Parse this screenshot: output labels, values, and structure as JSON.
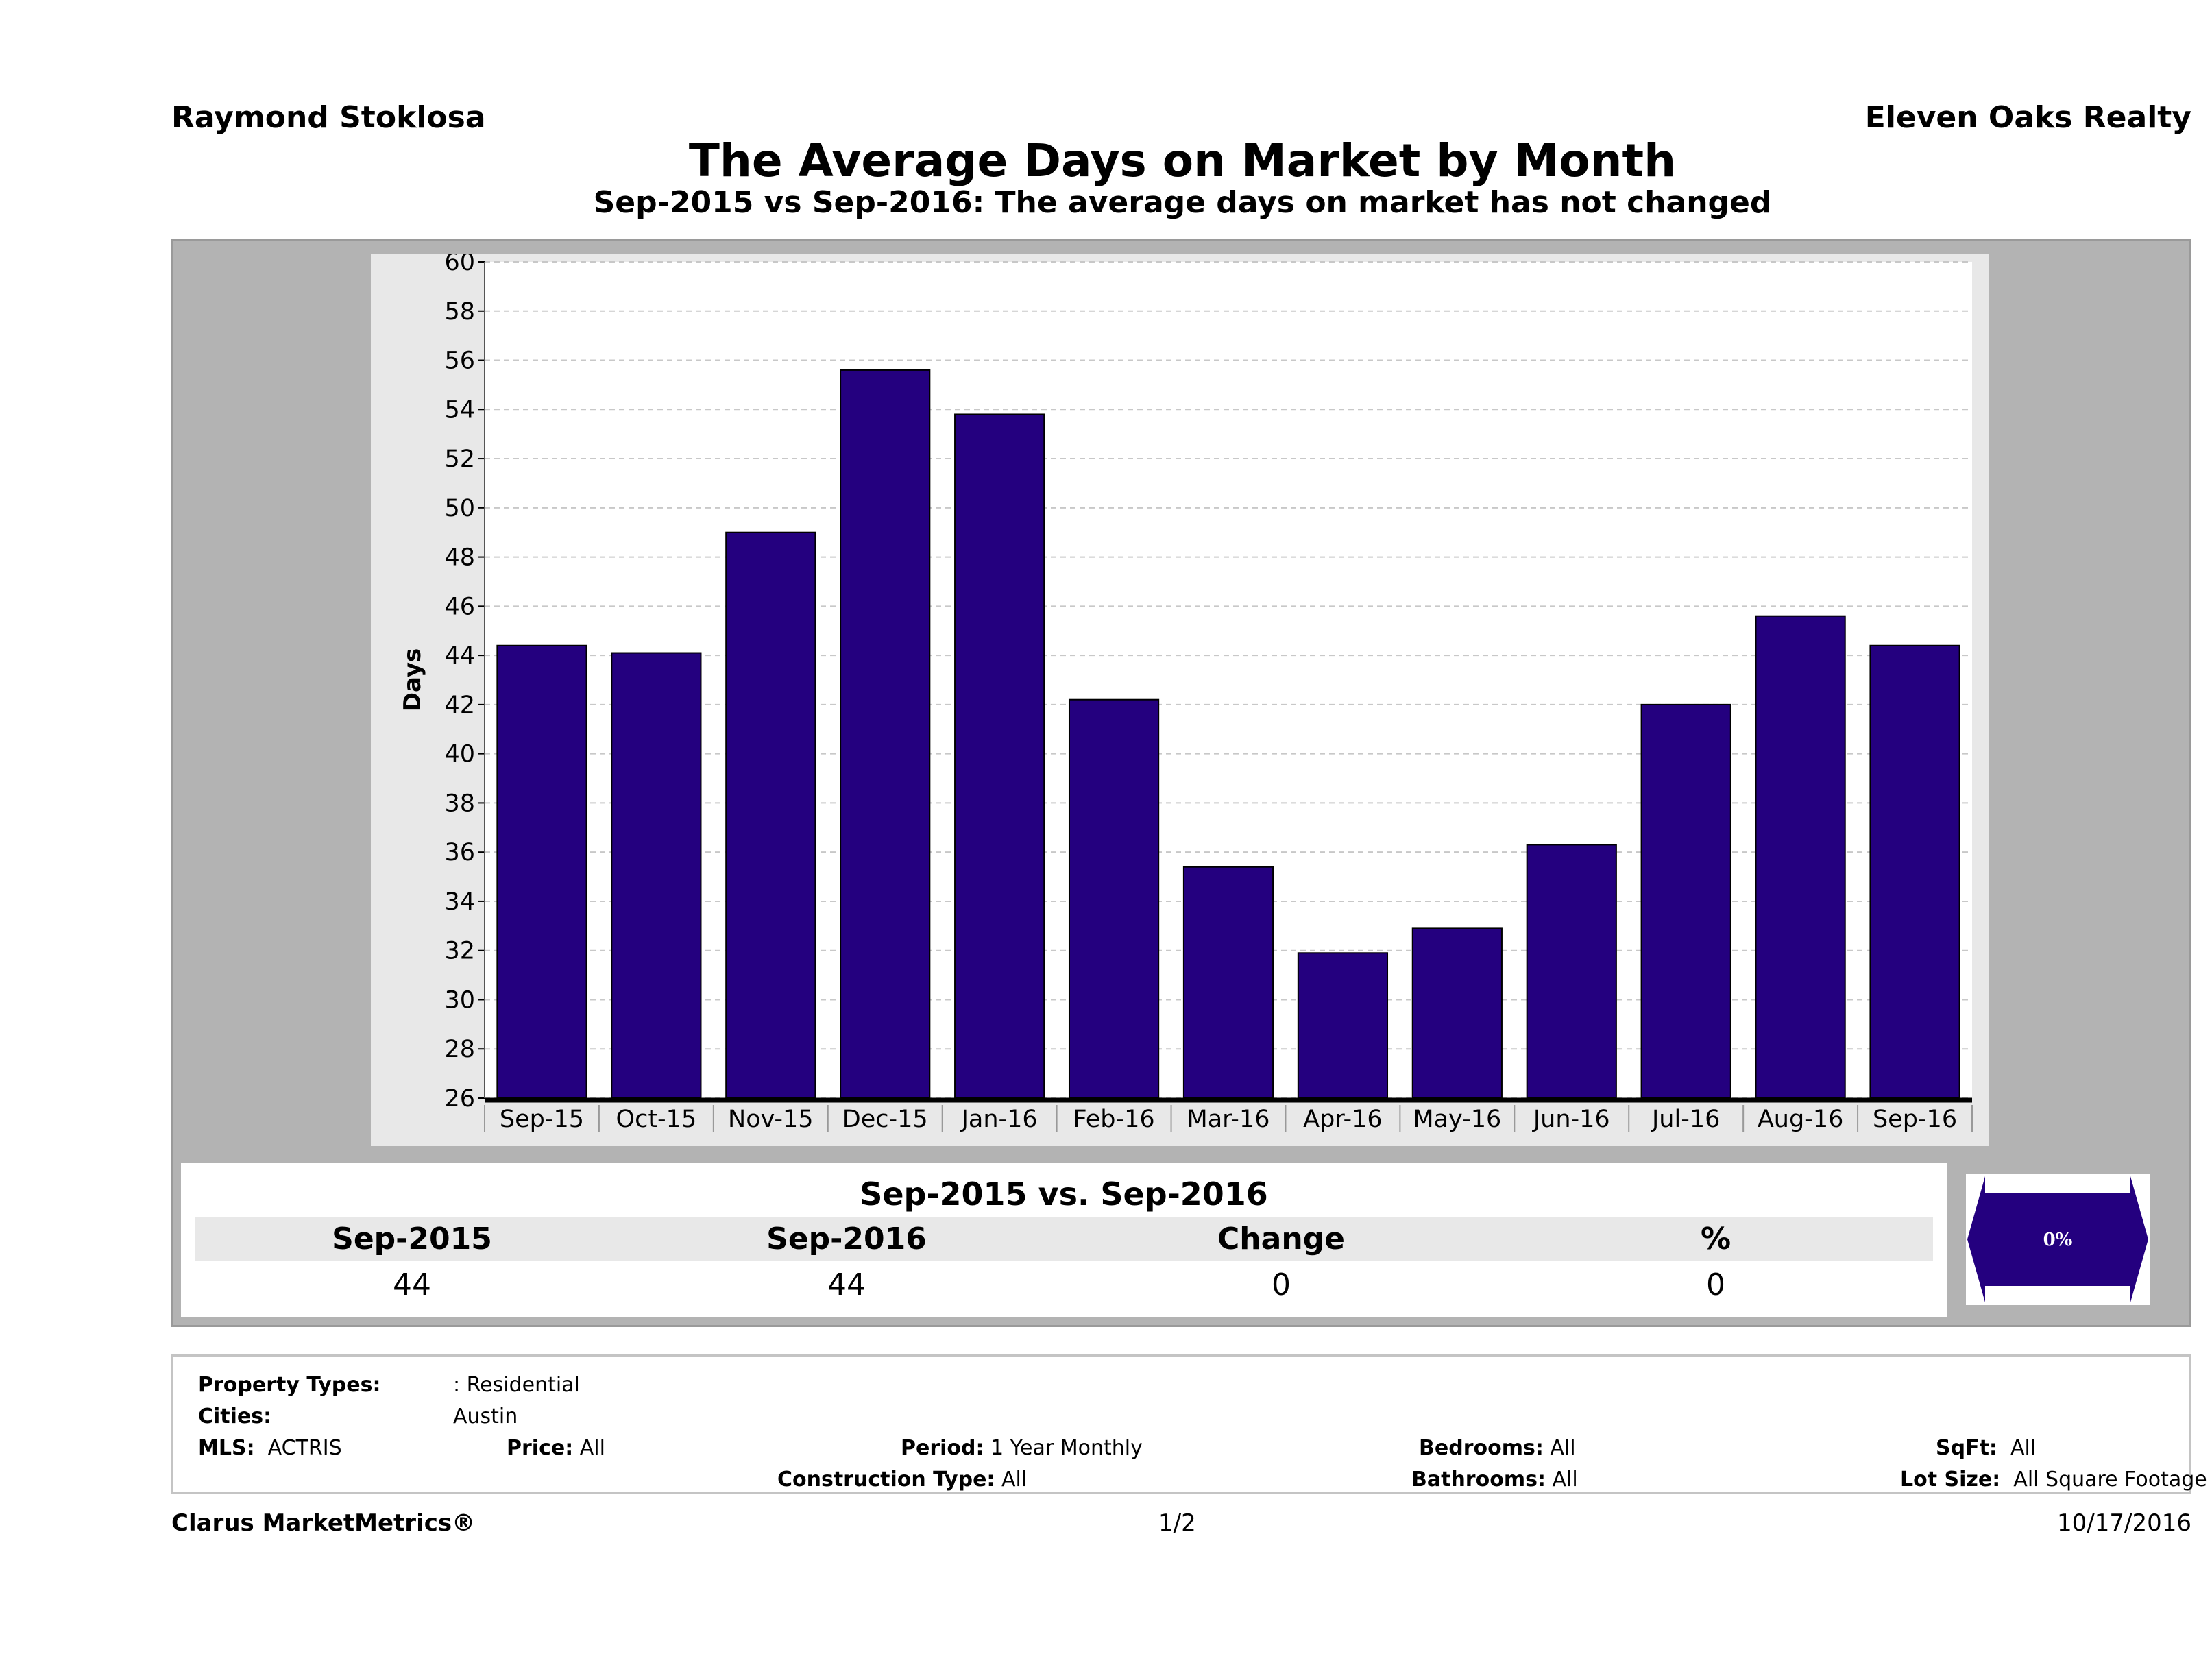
{
  "header": {
    "agent": "Raymond Stoklosa",
    "brokerage": "Eleven Oaks Realty"
  },
  "chart_data": {
    "type": "bar",
    "title": "The Average Days on Market by Month",
    "subtitle": "Sep-2015 vs Sep-2016: The average days on market has not changed",
    "xlabel": "",
    "ylabel": "Days",
    "ylim": [
      26,
      60
    ],
    "yticks": [
      26,
      28,
      30,
      32,
      34,
      36,
      38,
      40,
      42,
      44,
      46,
      48,
      50,
      52,
      54,
      56,
      58,
      60
    ],
    "grid": true,
    "categories": [
      "Sep-15",
      "Oct-15",
      "Nov-15",
      "Dec-15",
      "Jan-16",
      "Feb-16",
      "Mar-16",
      "Apr-16",
      "May-16",
      "Jun-16",
      "Jul-16",
      "Aug-16",
      "Sep-16"
    ],
    "values": [
      44.4,
      44.1,
      49.0,
      55.6,
      53.8,
      42.2,
      35.4,
      31.9,
      32.9,
      36.3,
      42.0,
      45.6,
      44.4
    ],
    "bar_color": "#24007f"
  },
  "summary": {
    "heading": "Sep-2015 vs. Sep-2016",
    "columns": [
      "Sep-2015",
      "Sep-2016",
      "Change",
      "%"
    ],
    "values": [
      "44",
      "44",
      "0",
      "0"
    ],
    "change_badge": "0%",
    "badge_color": "#24007f"
  },
  "filters": {
    "property_types_label": "Property Types:",
    "property_types_value": ": Residential",
    "cities_label": "Cities:",
    "cities_value": "Austin",
    "mls_label": "MLS:",
    "mls_value": "ACTRIS",
    "price_label": "Price:",
    "price_value": "All",
    "period_label": "Period:",
    "period_value": "1 Year Monthly",
    "construction_label": "Construction Type:",
    "construction_value": "All",
    "bedrooms_label": "Bedrooms:",
    "bedrooms_value": "All",
    "bathrooms_label": "Bathrooms:",
    "bathrooms_value": "All",
    "sqft_label": "SqFt:",
    "sqft_value": "All",
    "lotsize_label": "Lot Size:",
    "lotsize_value": "All Square Footage"
  },
  "footer": {
    "brand": "Clarus MarketMetrics®",
    "page": "1/2",
    "date": "10/17/2016"
  }
}
